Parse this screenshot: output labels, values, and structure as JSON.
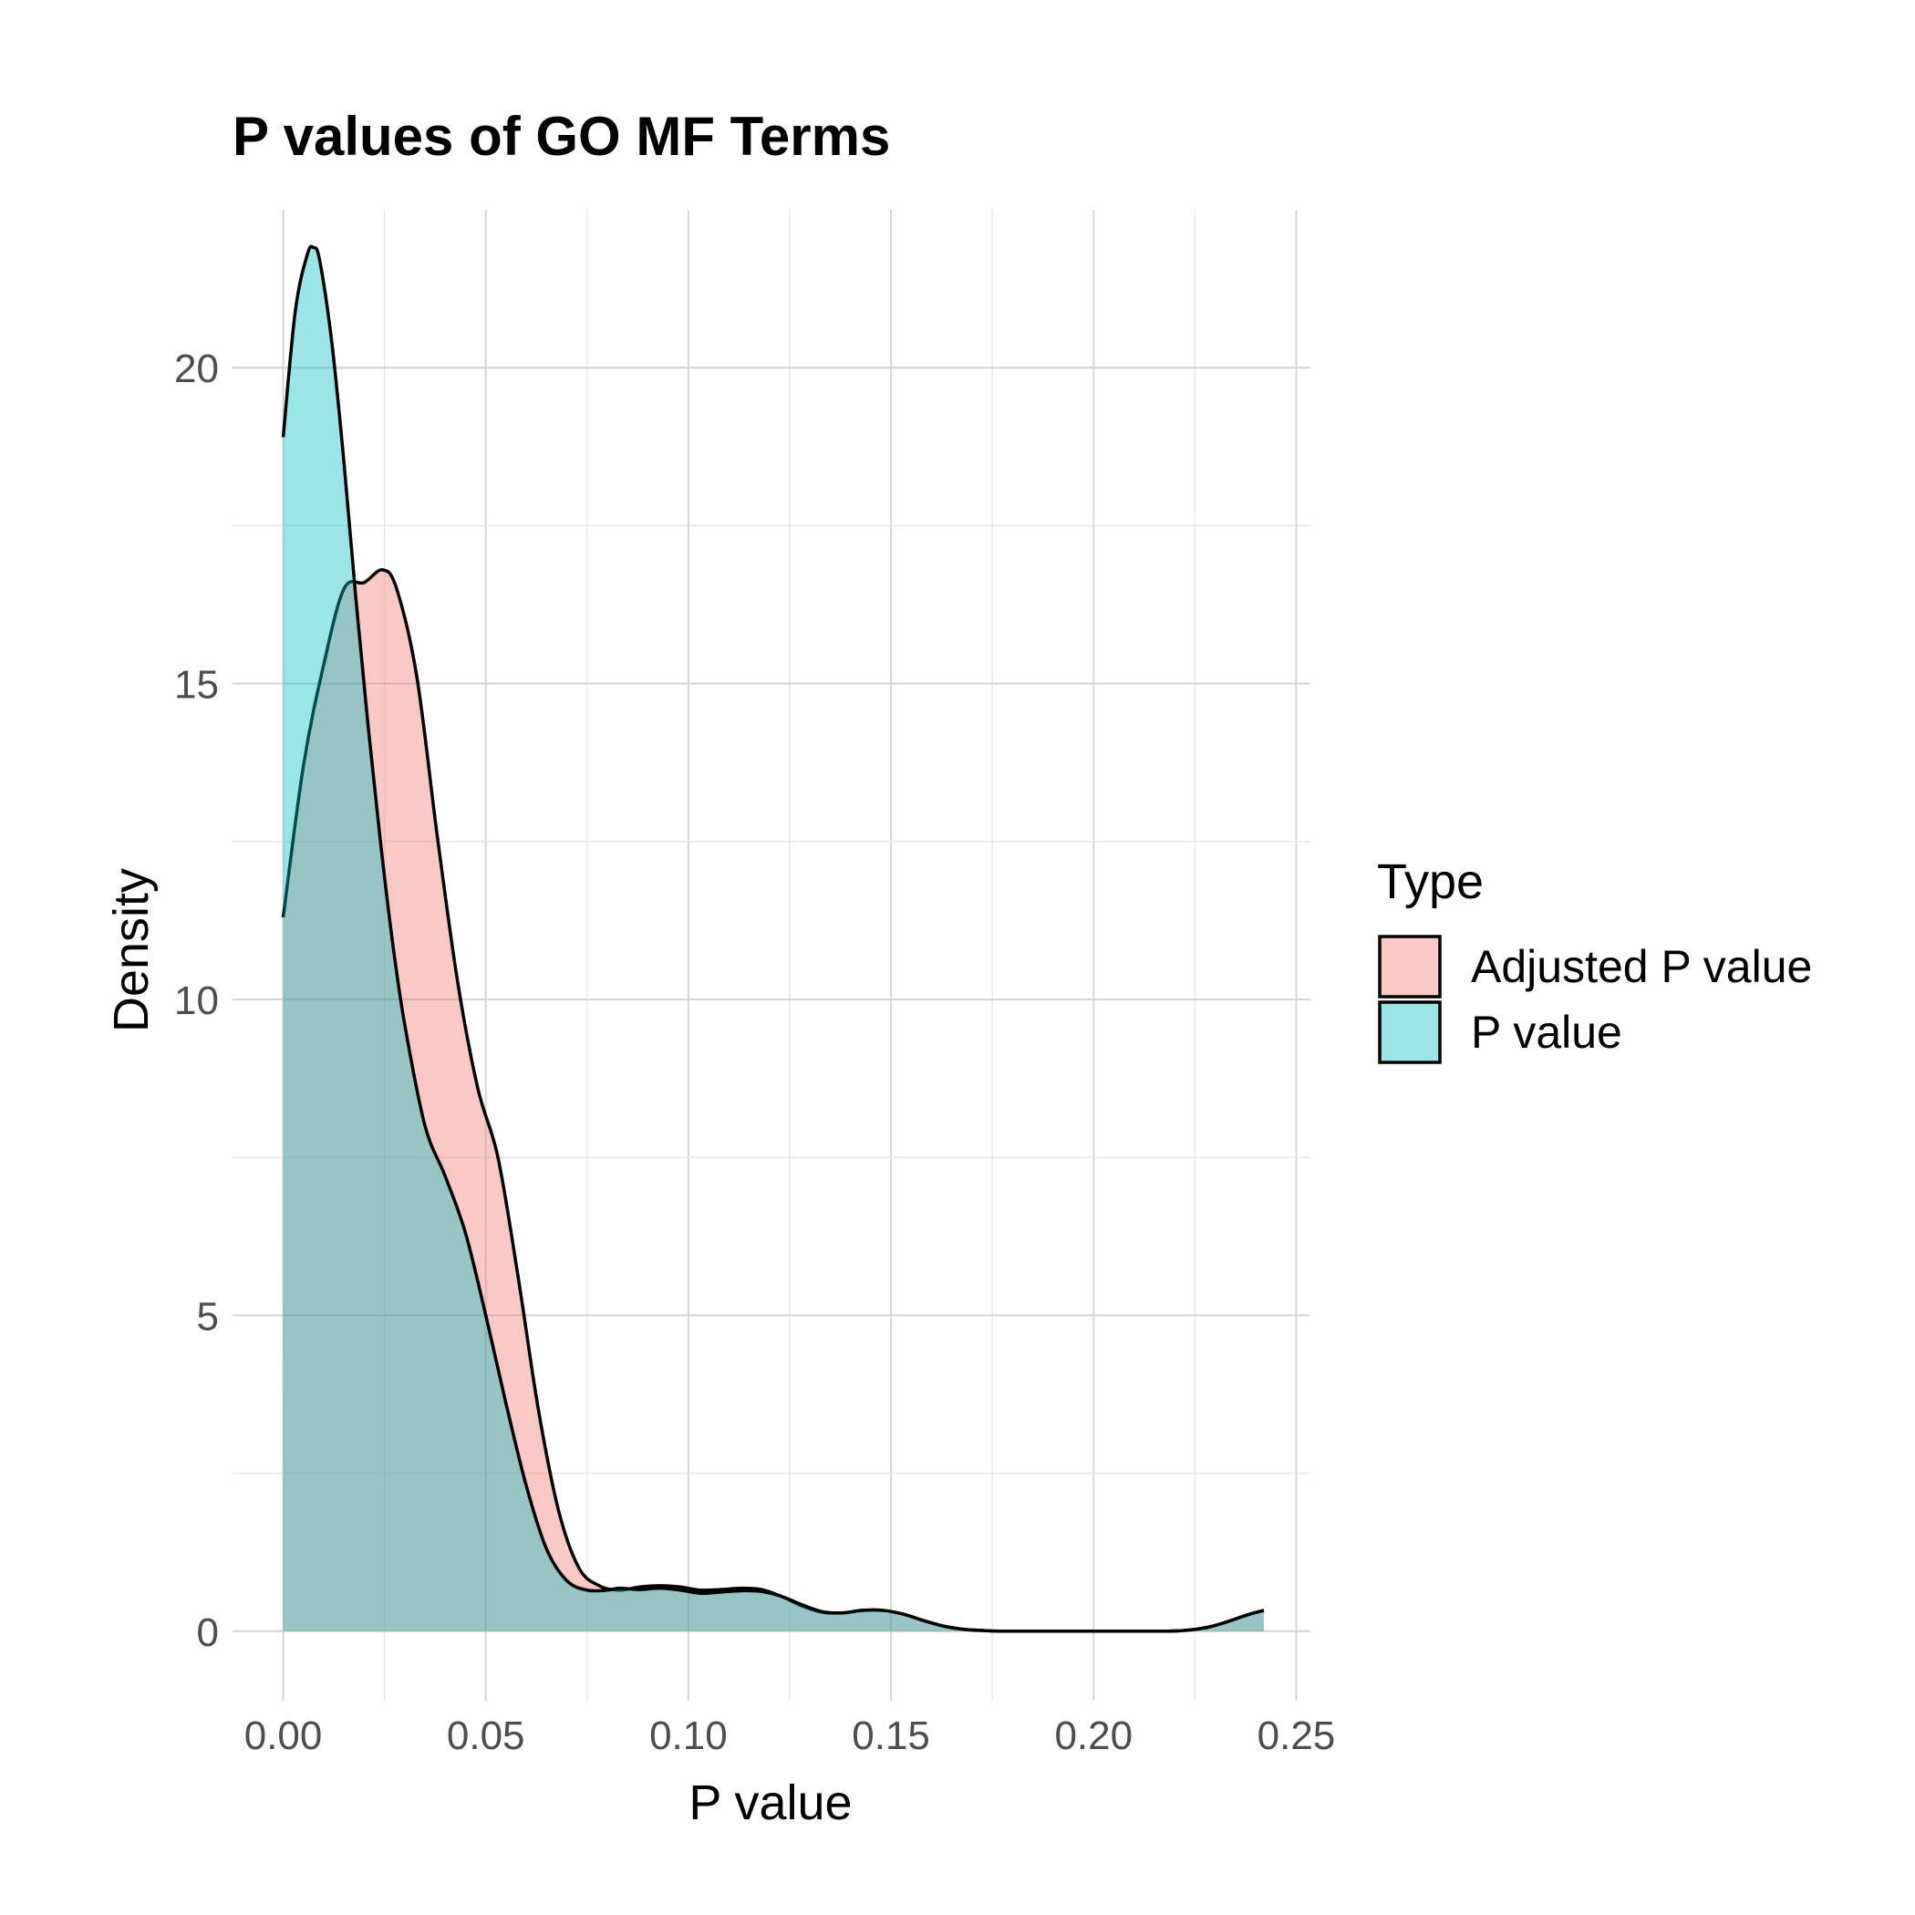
{
  "chart_data": {
    "type": "area",
    "title": "P values of GO MF Terms",
    "xlabel": "P value",
    "ylabel": "Density",
    "xlim": [
      -0.0125,
      0.2535
    ],
    "ylim": [
      -1.1,
      22.5
    ],
    "x_ticks": [
      "0.00",
      "0.05",
      "0.10",
      "0.15",
      "0.20",
      "0.25"
    ],
    "y_ticks": [
      "0",
      "5",
      "10",
      "15",
      "20"
    ],
    "grid": true,
    "legend": {
      "title": "Type",
      "position": "right",
      "entries": [
        "Adjusted P value",
        "P value"
      ]
    },
    "series": [
      {
        "name": "Adjusted P value",
        "color": "#F8766D",
        "x": [
          0.0,
          0.005,
          0.01,
          0.015,
          0.02,
          0.0245,
          0.028,
          0.033,
          0.038,
          0.043,
          0.048,
          0.053,
          0.058,
          0.063,
          0.068,
          0.073,
          0.078,
          0.083,
          0.088,
          0.093,
          0.098,
          0.103,
          0.108,
          0.113,
          0.118,
          0.123,
          0.128,
          0.133,
          0.138,
          0.143,
          0.148,
          0.153,
          0.158,
          0.163,
          0.168,
          0.173,
          0.178,
          0.19,
          0.205,
          0.215,
          0.222,
          0.228,
          0.233,
          0.238,
          0.242
        ],
        "values": [
          11.3,
          13.7,
          15.3,
          16.5,
          16.6,
          16.8,
          16.5,
          15.1,
          12.6,
          10.3,
          8.6,
          7.5,
          5.6,
          3.5,
          1.9,
          1.0,
          0.72,
          0.65,
          0.7,
          0.72,
          0.7,
          0.65,
          0.66,
          0.68,
          0.66,
          0.55,
          0.4,
          0.3,
          0.29,
          0.33,
          0.33,
          0.27,
          0.17,
          0.08,
          0.03,
          0.01,
          0.0,
          0.0,
          0.0,
          0.0,
          0.01,
          0.06,
          0.15,
          0.26,
          0.33
        ]
      },
      {
        "name": "P value",
        "color": "#00BFC4",
        "x": [
          0.0,
          0.003,
          0.006,
          0.0075,
          0.009,
          0.012,
          0.015,
          0.018,
          0.021,
          0.024,
          0.027,
          0.03,
          0.035,
          0.04,
          0.045,
          0.05,
          0.055,
          0.06,
          0.065,
          0.07,
          0.075,
          0.08,
          0.083,
          0.088,
          0.093,
          0.098,
          0.103,
          0.108,
          0.113,
          0.118,
          0.123,
          0.128,
          0.133,
          0.138,
          0.143,
          0.148,
          0.153,
          0.158,
          0.163,
          0.168,
          0.173,
          0.178,
          0.19,
          0.205,
          0.215,
          0.222,
          0.228,
          0.233,
          0.238,
          0.242
        ],
        "values": [
          18.9,
          20.9,
          21.8,
          21.9,
          21.7,
          20.4,
          18.5,
          16.3,
          14.3,
          12.5,
          10.9,
          9.6,
          8.0,
          7.2,
          6.3,
          5.0,
          3.6,
          2.3,
          1.3,
          0.8,
          0.65,
          0.65,
          0.68,
          0.66,
          0.68,
          0.65,
          0.6,
          0.62,
          0.64,
          0.63,
          0.55,
          0.42,
          0.31,
          0.29,
          0.33,
          0.33,
          0.27,
          0.17,
          0.08,
          0.03,
          0.01,
          0.0,
          0.0,
          0.0,
          0.0,
          0.01,
          0.06,
          0.15,
          0.26,
          0.33
        ]
      }
    ]
  }
}
